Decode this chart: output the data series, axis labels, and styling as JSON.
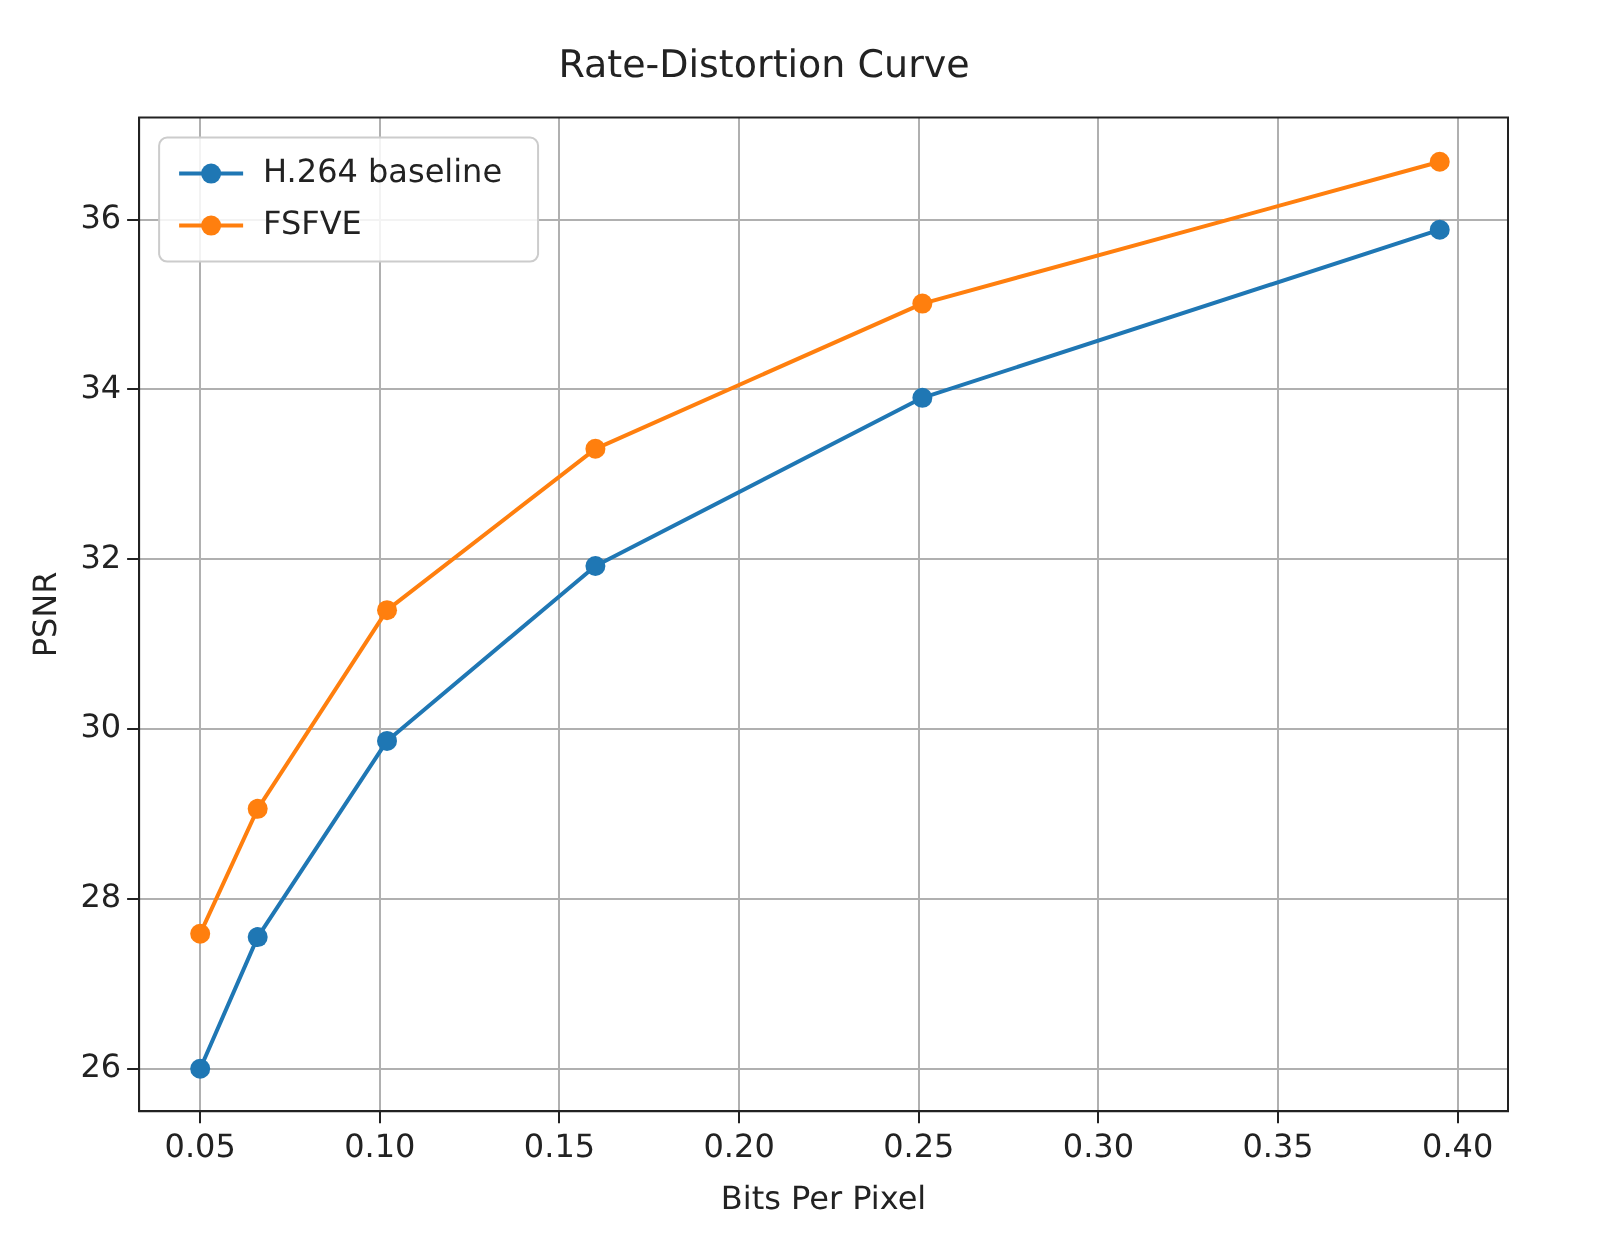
{
  "chart_data": {
    "type": "line",
    "title": "Rate-Distortion Curve",
    "xlabel": "Bits Per Pixel",
    "ylabel": "PSNR",
    "series": [
      {
        "name": "H.264 baseline",
        "color": "#1f77b4",
        "x": [
          0.05,
          0.066,
          0.102,
          0.16,
          0.251,
          0.395
        ],
        "values": [
          26.0,
          27.55,
          29.86,
          31.92,
          33.9,
          35.88
        ]
      },
      {
        "name": "FSFVE",
        "color": "#ff7f0e",
        "x": [
          0.05,
          0.066,
          0.102,
          0.16,
          0.251,
          0.395
        ],
        "values": [
          27.59,
          29.06,
          31.4,
          33.3,
          35.01,
          36.68
        ]
      }
    ],
    "xlim": [
      0.033,
      0.414
    ],
    "ylim": [
      25.5,
      37.2
    ],
    "xticks": [
      {
        "value": 0.05,
        "label": "0.05"
      },
      {
        "value": 0.1,
        "label": "0.10"
      },
      {
        "value": 0.15,
        "label": "0.15"
      },
      {
        "value": 0.2,
        "label": "0.20"
      },
      {
        "value": 0.25,
        "label": "0.25"
      },
      {
        "value": 0.3,
        "label": "0.30"
      },
      {
        "value": 0.35,
        "label": "0.35"
      },
      {
        "value": 0.4,
        "label": "0.40"
      }
    ],
    "yticks": [
      26,
      28,
      30,
      32,
      34,
      36
    ],
    "grid": true,
    "legend": "top left",
    "marker": "circle",
    "line_style": "solid"
  }
}
